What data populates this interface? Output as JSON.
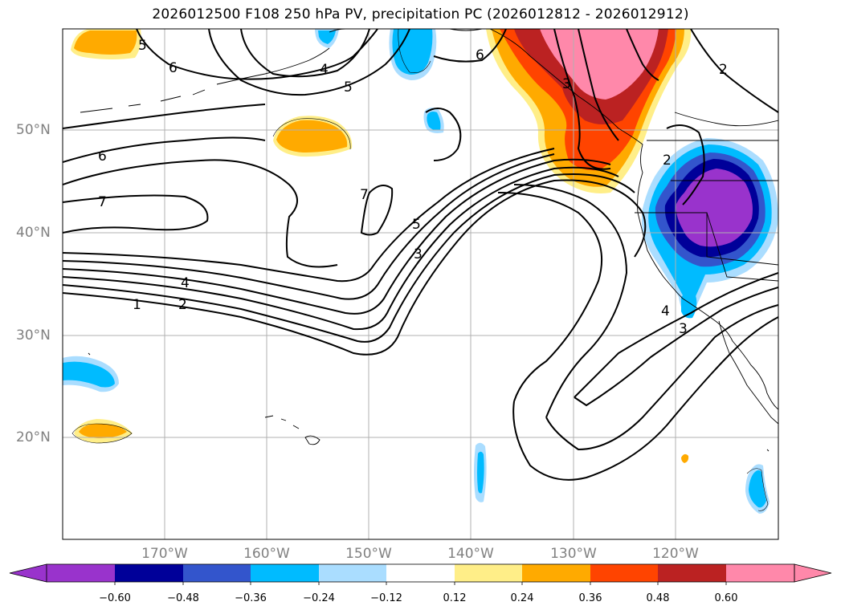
{
  "title": "2026012500 F108 250 hPa PV, precipitation PC (2026012812 - 2026012912)",
  "lat_labels": [
    "50°N",
    "40°N",
    "30°N",
    "20°N"
  ],
  "lon_labels": [
    "170°W",
    "160°W",
    "150°W",
    "140°W",
    "130°W",
    "120°W"
  ],
  "contour_labels": [
    "1",
    "2",
    "3",
    "4",
    "5",
    "6",
    "7",
    "6",
    "5",
    "4",
    "3",
    "2",
    "7",
    "6",
    "5",
    "2",
    "4",
    "3"
  ],
  "colorbar": {
    "ticks": [
      "−0.60",
      "−0.48",
      "−0.36",
      "−0.24",
      "−0.12",
      "0.12",
      "0.24",
      "0.36",
      "0.48",
      "0.60"
    ],
    "colors": [
      "#9933cc",
      "#000099",
      "#3355cc",
      "#00bbff",
      "#aaddff",
      "#ffffff",
      "#ffee88",
      "#ffaa00",
      "#ff4400",
      "#bb2222",
      "#ff88aa"
    ]
  },
  "colors": {
    "neg_extreme": "#9933cc",
    "pos_extreme": "#ff88aa",
    "grid": "#b0b0b0",
    "contour": "#000000"
  }
}
